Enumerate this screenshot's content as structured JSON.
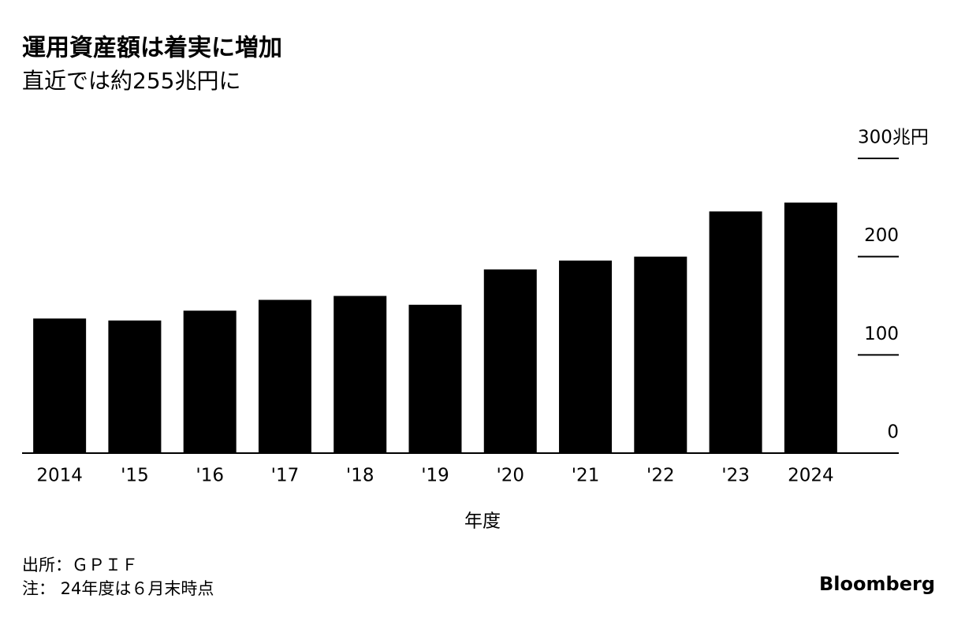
{
  "chart_data": {
    "type": "bar",
    "title": "運用資産額は着実に増加",
    "subtitle": "直近では約255兆円に",
    "categories": [
      "2014",
      "'15",
      "'16",
      "'17",
      "'18",
      "'19",
      "'20",
      "'21",
      "'22",
      "'23",
      "2024"
    ],
    "values": [
      137,
      135,
      145,
      156,
      160,
      151,
      187,
      196,
      200,
      246,
      255
    ],
    "color": "#000000",
    "ylim": [
      0,
      300
    ],
    "yticks": [
      0,
      100,
      200,
      {
        "value": 300,
        "label": "300兆円"
      }
    ],
    "xlabel": "年度",
    "source": "出所：ＧＰＩＦ",
    "note": "注： 24年度は６月末時点",
    "logo": "Bloomberg"
  }
}
